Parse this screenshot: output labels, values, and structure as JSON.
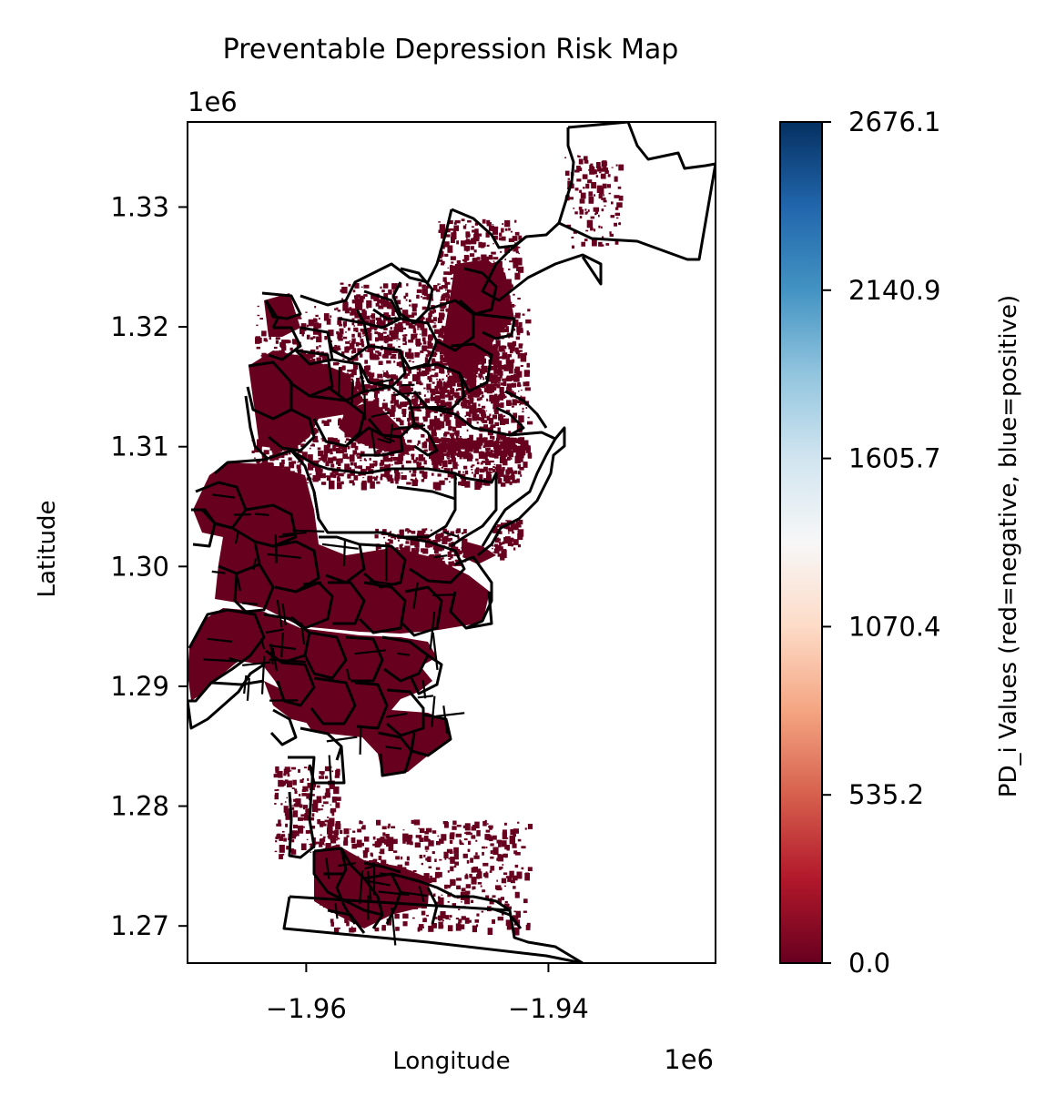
{
  "title": "Preventable Depression Risk Map",
  "axes": {
    "xlabel": "Longitude",
    "ylabel": "Latitude",
    "x_multiplier": "1e6",
    "y_multiplier": "1e6",
    "xlim": [
      -1.9698,
      -1.9262
    ],
    "ylim": [
      1.2669,
      1.3371
    ],
    "xticks": [
      {
        "value": -1.96,
        "label": "−1.96"
      },
      {
        "value": -1.94,
        "label": "−1.94"
      }
    ],
    "yticks": [
      {
        "value": 1.27,
        "label": "1.27"
      },
      {
        "value": 1.28,
        "label": "1.28"
      },
      {
        "value": 1.29,
        "label": "1.29"
      },
      {
        "value": 1.3,
        "label": "1.30"
      },
      {
        "value": 1.31,
        "label": "1.31"
      },
      {
        "value": 1.32,
        "label": "1.32"
      },
      {
        "value": 1.33,
        "label": "1.33"
      }
    ]
  },
  "colorbar": {
    "label": "PD_i Values (red=negative, blue=positive)",
    "min": 0.0,
    "max": 2676.1,
    "colormap": "RdBu",
    "stops": [
      "#67001f",
      "#b2182b",
      "#d6604d",
      "#f4a582",
      "#fddbc7",
      "#f7f7f7",
      "#d1e5f0",
      "#92c5de",
      "#4393c3",
      "#2166ac",
      "#053061"
    ],
    "ticks": [
      {
        "value": 0.0,
        "label": "0.0"
      },
      {
        "value": 535.2,
        "label": "535.2"
      },
      {
        "value": 1070.4,
        "label": "1070.4"
      },
      {
        "value": 1605.7,
        "label": "1605.7"
      },
      {
        "value": 2140.9,
        "label": "2140.9"
      },
      {
        "value": 2676.1,
        "label": "2676.1"
      }
    ]
  },
  "map_colors": {
    "fill": "#67001f",
    "boundary": "#000000"
  }
}
